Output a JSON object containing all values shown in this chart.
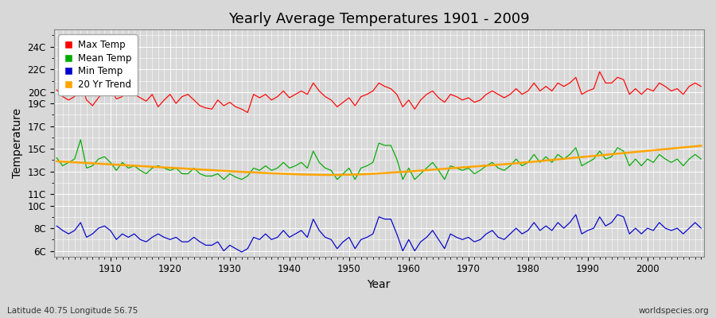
{
  "title": "Yearly Average Temperatures 1901 - 2009",
  "xlabel": "Year",
  "ylabel": "Temperature",
  "subtitle_left": "Latitude 40.75 Longitude 56.75",
  "subtitle_right": "worldspecies.org",
  "years_start": 1901,
  "years_end": 2009,
  "ylim": [
    5.5,
    25.5
  ],
  "xlim": [
    1900.5,
    2009.5
  ],
  "bg_color": "#d8d8d8",
  "plot_bg_color": "#d8d8d8",
  "grid_color": "#ffffff",
  "colors": {
    "max": "#ff0000",
    "mean": "#00aa00",
    "min": "#0000cc",
    "trend": "#ffa500"
  },
  "legend_labels": [
    "Max Temp",
    "Mean Temp",
    "Min Temp",
    "20 Yr Trend"
  ],
  "max_temps": [
    20.2,
    19.6,
    19.3,
    19.6,
    20.9,
    19.3,
    18.8,
    19.5,
    20.1,
    20.3,
    19.4,
    19.6,
    21.0,
    19.8,
    19.5,
    19.2,
    19.8,
    18.7,
    19.3,
    19.8,
    19.0,
    19.6,
    19.8,
    19.3,
    18.8,
    18.6,
    18.5,
    19.3,
    18.8,
    19.1,
    18.7,
    18.5,
    18.2,
    19.8,
    19.5,
    19.8,
    19.3,
    19.6,
    20.1,
    19.5,
    19.8,
    20.1,
    19.8,
    20.8,
    20.1,
    19.6,
    19.3,
    18.7,
    19.1,
    19.5,
    18.8,
    19.6,
    19.8,
    20.1,
    20.8,
    20.5,
    20.3,
    19.8,
    18.7,
    19.3,
    18.5,
    19.3,
    19.8,
    20.1,
    19.5,
    19.1,
    19.8,
    19.6,
    19.3,
    19.5,
    19.1,
    19.3,
    19.8,
    20.1,
    19.8,
    19.5,
    19.8,
    20.3,
    19.8,
    20.1,
    20.8,
    20.1,
    20.5,
    20.1,
    20.8,
    20.5,
    20.8,
    21.3,
    19.8,
    20.1,
    20.3,
    21.8,
    20.8,
    20.8,
    21.3,
    21.1,
    19.8,
    20.3,
    19.8,
    20.3,
    20.1,
    20.8,
    20.5,
    20.1,
    20.3,
    19.8,
    20.5,
    20.8,
    20.5
  ],
  "mean_temps": [
    14.2,
    13.5,
    13.8,
    14.1,
    15.8,
    13.3,
    13.5,
    14.1,
    14.3,
    13.8,
    13.1,
    13.8,
    13.3,
    13.5,
    13.1,
    12.8,
    13.3,
    13.5,
    13.3,
    13.1,
    13.3,
    12.8,
    12.8,
    13.3,
    12.8,
    12.6,
    12.6,
    12.8,
    12.3,
    12.8,
    12.5,
    12.3,
    12.6,
    13.3,
    13.1,
    13.5,
    13.1,
    13.3,
    13.8,
    13.3,
    13.5,
    13.8,
    13.3,
    14.8,
    13.8,
    13.3,
    13.1,
    12.3,
    12.8,
    13.3,
    12.3,
    13.3,
    13.5,
    13.8,
    15.5,
    15.3,
    15.3,
    14.1,
    12.3,
    13.3,
    12.3,
    12.8,
    13.3,
    13.8,
    13.1,
    12.3,
    13.5,
    13.3,
    13.1,
    13.3,
    12.8,
    13.1,
    13.5,
    13.8,
    13.3,
    13.1,
    13.5,
    14.1,
    13.5,
    13.8,
    14.5,
    13.8,
    14.3,
    13.8,
    14.5,
    14.1,
    14.5,
    15.1,
    13.5,
    13.8,
    14.1,
    14.8,
    14.1,
    14.3,
    15.1,
    14.8,
    13.5,
    14.1,
    13.5,
    14.1,
    13.8,
    14.5,
    14.1,
    13.8,
    14.1,
    13.5,
    14.1,
    14.5,
    14.1
  ],
  "min_temps": [
    8.2,
    7.8,
    7.5,
    7.8,
    8.5,
    7.2,
    7.5,
    8.0,
    8.2,
    7.8,
    7.0,
    7.5,
    7.2,
    7.5,
    7.0,
    6.8,
    7.2,
    7.5,
    7.2,
    7.0,
    7.2,
    6.8,
    6.8,
    7.2,
    6.8,
    6.5,
    6.5,
    6.8,
    6.0,
    6.5,
    6.2,
    5.9,
    6.2,
    7.2,
    7.0,
    7.5,
    7.0,
    7.2,
    7.8,
    7.2,
    7.5,
    7.8,
    7.2,
    8.8,
    7.8,
    7.2,
    7.0,
    6.2,
    6.8,
    7.2,
    6.2,
    7.0,
    7.2,
    7.5,
    9.0,
    8.8,
    8.8,
    7.5,
    6.0,
    7.0,
    6.0,
    6.8,
    7.2,
    7.8,
    7.0,
    6.2,
    7.5,
    7.2,
    7.0,
    7.2,
    6.8,
    7.0,
    7.5,
    7.8,
    7.2,
    7.0,
    7.5,
    8.0,
    7.5,
    7.8,
    8.5,
    7.8,
    8.2,
    7.8,
    8.5,
    8.0,
    8.5,
    9.2,
    7.5,
    7.8,
    8.0,
    9.0,
    8.2,
    8.5,
    9.2,
    9.0,
    7.5,
    8.0,
    7.5,
    8.0,
    7.8,
    8.5,
    8.0,
    7.8,
    8.0,
    7.5,
    8.0,
    8.5,
    8.0
  ],
  "trend_values": [
    13.9,
    13.87,
    13.84,
    13.81,
    13.78,
    13.75,
    13.72,
    13.69,
    13.66,
    13.63,
    13.6,
    13.57,
    13.54,
    13.51,
    13.48,
    13.45,
    13.42,
    13.39,
    13.36,
    13.33,
    13.3,
    13.27,
    13.24,
    13.21,
    13.18,
    13.15,
    13.12,
    13.09,
    13.06,
    13.03,
    13.0,
    12.97,
    12.94,
    12.92,
    12.89,
    12.87,
    12.84,
    12.82,
    12.8,
    12.78,
    12.76,
    12.74,
    12.73,
    12.72,
    12.71,
    12.7,
    12.7,
    12.7,
    12.71,
    12.72,
    12.73,
    12.75,
    12.77,
    12.8,
    12.83,
    12.86,
    12.9,
    12.93,
    12.97,
    13.0,
    13.04,
    13.08,
    13.12,
    13.16,
    13.2,
    13.24,
    13.28,
    13.32,
    13.36,
    13.4,
    13.44,
    13.48,
    13.52,
    13.56,
    13.6,
    13.64,
    13.68,
    13.72,
    13.77,
    13.82,
    13.87,
    13.92,
    13.97,
    14.02,
    14.07,
    14.12,
    14.17,
    14.22,
    14.27,
    14.32,
    14.37,
    14.42,
    14.47,
    14.52,
    14.57,
    14.62,
    14.67,
    14.72,
    14.77,
    14.82,
    14.87,
    14.92,
    14.97,
    15.02,
    15.07,
    15.12,
    15.17,
    15.22,
    15.27
  ]
}
